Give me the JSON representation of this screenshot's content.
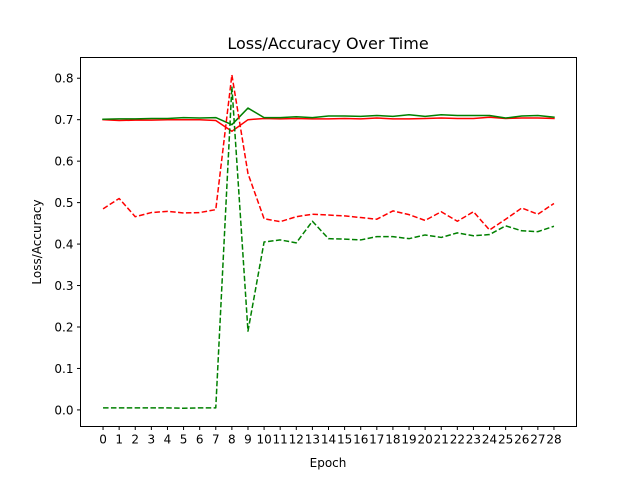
{
  "chart_data": {
    "type": "line",
    "title": "Loss/Accuracy Over Time",
    "xlabel": "Epoch",
    "ylabel": "Loss/Accuracy",
    "xlim": [
      -1.4,
      29.4
    ],
    "ylim": [
      -0.04,
      0.85
    ],
    "grid": false,
    "x": [
      0,
      1,
      2,
      3,
      4,
      5,
      6,
      7,
      8,
      9,
      10,
      11,
      12,
      13,
      14,
      15,
      16,
      17,
      18,
      19,
      20,
      21,
      22,
      23,
      24,
      25,
      26,
      27,
      28
    ],
    "x_tick_labels": [
      "0",
      "1",
      "2",
      "3",
      "4",
      "5",
      "6",
      "7",
      "8",
      "9",
      "10",
      "11",
      "12",
      "13",
      "14",
      "15",
      "16",
      "17",
      "18",
      "19",
      "20",
      "21",
      "22",
      "23",
      "24",
      "25",
      "26",
      "27",
      "28"
    ],
    "y_ticks": [
      0.0,
      0.1,
      0.2,
      0.3,
      0.4,
      0.5,
      0.6,
      0.7,
      0.8
    ],
    "y_tick_labels": [
      "0.0",
      "0.1",
      "0.2",
      "0.3",
      "0.4",
      "0.5",
      "0.6",
      "0.7",
      "0.8"
    ],
    "series": [
      {
        "name": "red-solid",
        "color": "#ff0000",
        "dashed": false,
        "values": [
          0.7,
          0.698,
          0.699,
          0.699,
          0.7,
          0.7,
          0.7,
          0.698,
          0.672,
          0.7,
          0.703,
          0.702,
          0.703,
          0.702,
          0.702,
          0.703,
          0.702,
          0.704,
          0.702,
          0.702,
          0.703,
          0.704,
          0.703,
          0.703,
          0.706,
          0.703,
          0.704,
          0.704,
          0.703
        ]
      },
      {
        "name": "green-solid",
        "color": "#008000",
        "dashed": false,
        "values": [
          0.701,
          0.702,
          0.702,
          0.703,
          0.703,
          0.705,
          0.704,
          0.705,
          0.688,
          0.728,
          0.705,
          0.705,
          0.707,
          0.705,
          0.709,
          0.709,
          0.708,
          0.71,
          0.708,
          0.712,
          0.708,
          0.712,
          0.71,
          0.71,
          0.71,
          0.704,
          0.709,
          0.71,
          0.706
        ]
      },
      {
        "name": "red-dashed",
        "color": "#ff0000",
        "dashed": true,
        "values": [
          0.485,
          0.51,
          0.466,
          0.476,
          0.479,
          0.475,
          0.476,
          0.483,
          0.808,
          0.57,
          0.461,
          0.454,
          0.466,
          0.472,
          0.47,
          0.468,
          0.464,
          0.46,
          0.48,
          0.471,
          0.457,
          0.478,
          0.455,
          0.478,
          0.434,
          0.46,
          0.487,
          0.472,
          0.498
        ]
      },
      {
        "name": "green-dashed",
        "color": "#008000",
        "dashed": true,
        "values": [
          0.005,
          0.005,
          0.005,
          0.005,
          0.005,
          0.004,
          0.005,
          0.005,
          0.78,
          0.19,
          0.405,
          0.41,
          0.403,
          0.455,
          0.413,
          0.412,
          0.41,
          0.418,
          0.418,
          0.413,
          0.422,
          0.416,
          0.427,
          0.42,
          0.423,
          0.444,
          0.432,
          0.43,
          0.443
        ]
      }
    ]
  }
}
